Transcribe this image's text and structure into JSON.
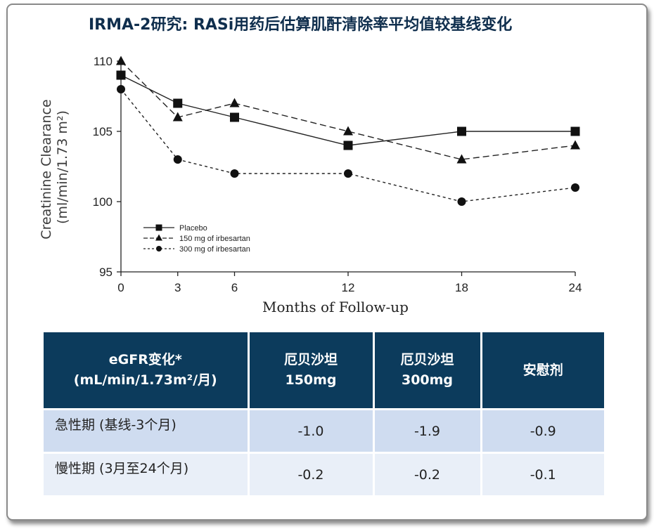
{
  "title": "IRMA-2研究: RASi用药后估算肌酐清除率平均值较基线变化",
  "chart_data": {
    "type": "line",
    "x": [
      0,
      3,
      6,
      12,
      18,
      24
    ],
    "xlabel": "Months of Follow-up",
    "ylabel_line1": "Creatinine Clearance",
    "ylabel_line2": "(ml/min/1.73 m²)",
    "ylim": [
      95,
      110
    ],
    "yticks": [
      95,
      100,
      105,
      110
    ],
    "xticks": [
      0,
      3,
      6,
      12,
      18,
      24
    ],
    "grid": false,
    "legend_position": "bottom-left",
    "series": [
      {
        "name": "Placebo",
        "values": [
          109,
          107,
          106,
          104,
          105,
          105
        ],
        "marker": "square",
        "dash": "solid"
      },
      {
        "name": "150 mg of irbesartan",
        "values": [
          110,
          106,
          107,
          105,
          103,
          104
        ],
        "marker": "triangle",
        "dash": "long"
      },
      {
        "name": "300 mg of irbesartan",
        "values": [
          108,
          103,
          102,
          102,
          100,
          101
        ],
        "marker": "circle",
        "dash": "short"
      }
    ]
  },
  "table": {
    "headers": [
      "eGFR变化*\n(mL/min/1.73m²/月)",
      "厄贝沙坦\n150mg",
      "厄贝沙坦\n300mg",
      "安慰剂"
    ],
    "rows": [
      {
        "label": "急性期 (基线-3个月)",
        "values": [
          "-1.0",
          "-1.9",
          "-0.9"
        ]
      },
      {
        "label": "慢性期 (3月至24个月)",
        "values": [
          "-0.2",
          "-0.2",
          "-0.1"
        ]
      }
    ]
  }
}
